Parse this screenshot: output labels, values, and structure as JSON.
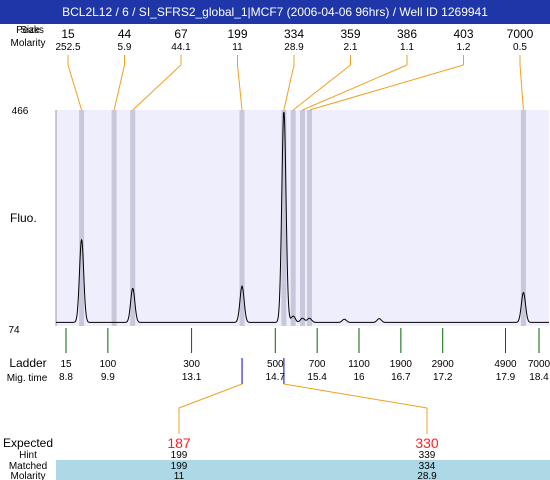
{
  "header": {
    "title": "BCL2L12 / 6 / SI_SFRS2_global_1|MCF7 (2006-04-06 96hrs) / Well ID 1269941"
  },
  "labels": {
    "peaks_row": "Peaks",
    "size_row": "Size",
    "molarity_row": "Molarity",
    "fluo": "Fluo.",
    "ladder": "Ladder",
    "mig_time": "Mig. time",
    "expected": "Expected",
    "hint": "Hint",
    "matched": "Matched",
    "molarity_bottom": "Molarity"
  },
  "chart_data": {
    "type": "line",
    "ylim": [
      74,
      466
    ],
    "y_ticks": [
      466,
      74
    ],
    "peaks": [
      {
        "size": "15",
        "molarity": "252.5",
        "x": 8.85,
        "height": 0.39
      },
      {
        "size": "44",
        "molarity": "5.9",
        "x": 9.55,
        "height": 0.0
      },
      {
        "size": "67",
        "molarity": "44.1",
        "x": 9.95,
        "height": 0.16
      },
      {
        "size": "199",
        "molarity": "11",
        "x": 12.3,
        "height": 0.17
      },
      {
        "size": "334",
        "molarity": "28.9",
        "x": 13.2,
        "height": 1.0
      },
      {
        "size": "359",
        "molarity": "2.1",
        "x": 13.4,
        "height": 0.03
      },
      {
        "size": "386",
        "molarity": "1.1",
        "x": 13.6,
        "height": 0.02
      },
      {
        "size": "403",
        "molarity": "1.2",
        "x": 13.75,
        "height": 0.02
      },
      {
        "size": "7000",
        "molarity": "0.5",
        "x": 18.35,
        "height": 0.14
      }
    ],
    "minor_bumps": [
      {
        "x": 14.5,
        "height": 0.015
      },
      {
        "x": 15.25,
        "height": 0.018
      }
    ],
    "ladder": [
      {
        "size": "15",
        "time": "8.8"
      },
      {
        "size": "100",
        "time": "9.9"
      },
      {
        "size": "300",
        "time": "13.1"
      },
      {
        "size": "500",
        "time": "14.7"
      },
      {
        "size": "700",
        "time": "15.4"
      },
      {
        "size": "1100",
        "time": "16"
      },
      {
        "size": "1900",
        "time": "16.7"
      },
      {
        "size": "2900",
        "time": "17.2"
      },
      {
        "size": "4900",
        "time": "17.9"
      },
      {
        "size": "7000",
        "time": "18.4"
      }
    ],
    "expected": [
      {
        "expected": "187",
        "hint": "199",
        "matched": "199",
        "molarity": "11",
        "x": 12.3
      },
      {
        "expected": "330",
        "hint": "339",
        "matched": "334",
        "molarity": "28.9",
        "x": 13.2
      }
    ]
  },
  "colors": {
    "header_bg": "#1f36a8",
    "plot_bg": "#eeeefc",
    "peak_band": "#c8c8dc",
    "leader_line": "#f0a020",
    "ladder_tick": "#006600",
    "expected_marker": "#0000cc",
    "expected_text": "#ff2020",
    "matched_band": "#add8e6"
  }
}
